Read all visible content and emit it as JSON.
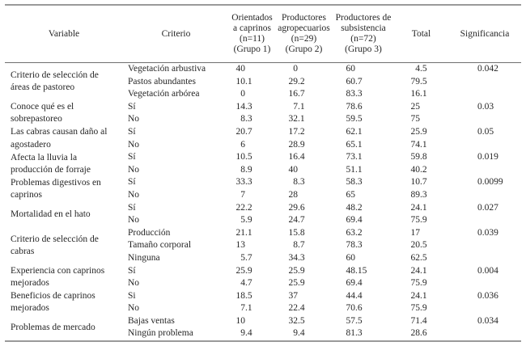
{
  "page": {
    "background": "#ffffff",
    "text_color": "#262626",
    "rule_color": "#9a9a9a"
  },
  "table": {
    "headers": {
      "variable": "Variable",
      "criterio": "Criterio",
      "grupo1_lines": [
        "Orientados",
        "a caprinos",
        "(n=11)",
        "(Grupo 1)"
      ],
      "grupo2_lines": [
        "Productores",
        "agropecuarios",
        "(n=29)",
        "(Grupo 2)"
      ],
      "grupo3_lines": [
        "Productores de",
        "subsistencia",
        "(n=72)",
        "(Grupo 3)"
      ],
      "total": "Total",
      "significancia": "Significancia"
    },
    "groups": [
      {
        "variable": "Criterio de selección de\náreas de pastoreo",
        "rows": [
          {
            "criterio": "Vegetación arbustiva",
            "g1": "40",
            "g2": "0",
            "g3": "60",
            "total": "4.5",
            "sig": "0.042"
          },
          {
            "criterio": "Pastos abundantes",
            "g1": "10.1",
            "g2": "29.2",
            "g3": "60.7",
            "total": "79.5",
            "sig": ""
          },
          {
            "criterio": "Vegetación arbórea",
            "g1": "0",
            "g2": "16.7",
            "g3": "83.3",
            "total": "16.1",
            "sig": ""
          }
        ]
      },
      {
        "variable": "Conoce qué es el\nsobrepastoreo",
        "rows": [
          {
            "criterio": "Sí",
            "g1": "14.3",
            "g2": "7.1",
            "g3": "78.6",
            "total": "25",
            "sig": "0.03"
          },
          {
            "criterio": "No",
            "g1": "8.3",
            "g2": "32.1",
            "g3": "59.5",
            "total": "75",
            "sig": ""
          }
        ]
      },
      {
        "variable": "Las cabras causan daño al\nagostadero",
        "rows": [
          {
            "criterio": "Sí",
            "g1": "20.7",
            "g2": "17.2",
            "g3": "62.1",
            "total": "25.9",
            "sig": "0.05"
          },
          {
            "criterio": "No",
            "g1": "6",
            "g2": "28.9",
            "g3": "65.1",
            "total": "74.1",
            "sig": ""
          }
        ]
      },
      {
        "variable": "Afecta la lluvia la\nproducción de forraje",
        "rows": [
          {
            "criterio": "Sí",
            "g1": "10.5",
            "g2": "16.4",
            "g3": "73.1",
            "total": "59.8",
            "sig": "0.019"
          },
          {
            "criterio": "No",
            "g1": "8.9",
            "g2": "40",
            "g3": "51.1",
            "total": "40.2",
            "sig": ""
          }
        ]
      },
      {
        "variable": "Problemas digestivos en\ncaprinos",
        "rows": [
          {
            "criterio": "Sí",
            "g1": "33.3",
            "g2": "8.3",
            "g3": "58.3",
            "total": "10.7",
            "sig": "0.0099"
          },
          {
            "criterio": "No",
            "g1": "7",
            "g2": "28",
            "g3": "65",
            "total": "89.3",
            "sig": ""
          }
        ]
      },
      {
        "variable": "Mortalidad en el hato",
        "rows": [
          {
            "criterio": "Sí",
            "g1": "22.2",
            "g2": "29.6",
            "g3": "48.2",
            "total": "24.1",
            "sig": "0.027"
          },
          {
            "criterio": "No",
            "g1": "5.9",
            "g2": "24.7",
            "g3": "69.4",
            "total": "75.9",
            "sig": ""
          }
        ]
      },
      {
        "variable": "Criterio de selección de\ncabras",
        "rows": [
          {
            "criterio": "Producción",
            "g1": "21.1",
            "g2": "15.8",
            "g3": "63.2",
            "total": "17",
            "sig": "0.039"
          },
          {
            "criterio": "Tamaño corporal",
            "g1": "13",
            "g2": "8.7",
            "g3": "78.3",
            "total": "20.5",
            "sig": ""
          },
          {
            "criterio": "Ninguna",
            "g1": "5.7",
            "g2": "34.3",
            "g3": "60",
            "total": "62.5",
            "sig": ""
          }
        ]
      },
      {
        "variable": "Experiencia con caprinos\nmejorados",
        "rows": [
          {
            "criterio": "Sí",
            "g1": "25.9",
            "g2": "25.9",
            "g3": "48.15",
            "total": "24.1",
            "sig": "0.004"
          },
          {
            "criterio": "No",
            "g1": "4.7",
            "g2": "25.9",
            "g3": "69.4",
            "total": "75.9",
            "sig": ""
          }
        ]
      },
      {
        "variable": "Beneficios de caprinos\nmejorados",
        "rows": [
          {
            "criterio": "Si",
            "g1": "18.5",
            "g2": "37",
            "g3": "44.4",
            "total": "24.1",
            "sig": "0.036"
          },
          {
            "criterio": "No",
            "g1": "7.1",
            "g2": "22.4",
            "g3": "70.6",
            "total": "75.9",
            "sig": ""
          }
        ]
      },
      {
        "variable": "Problemas de mercado",
        "rows": [
          {
            "criterio": "Bajas ventas",
            "g1": "10",
            "g2": "32.5",
            "g3": "57.5",
            "total": "71.4",
            "sig": "0.034"
          },
          {
            "criterio": "Ningún problema",
            "g1": "9.4",
            "g2": "9.4",
            "g3": "81.3",
            "total": "28.6",
            "sig": ""
          }
        ]
      }
    ]
  }
}
